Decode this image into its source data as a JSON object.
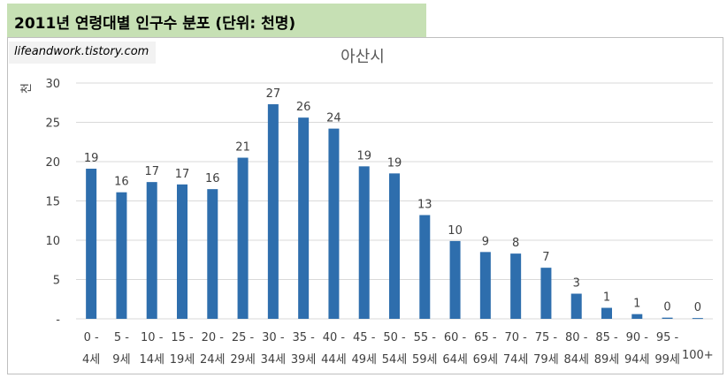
{
  "header": {
    "title": "2011년 연령대별 인구수 분포 (단위: 천명)"
  },
  "watermark": {
    "text": "lifeandwork.tistory.com"
  },
  "colors": {
    "bar": "#2e6ead",
    "header_bg": "#c6e0b4",
    "grid": "#d9d9d9"
  },
  "chart_data": {
    "type": "bar",
    "title": "아산시",
    "ylabel": "천",
    "xlabel": "",
    "ylim": [
      0,
      30
    ],
    "yticks": [
      0,
      5,
      10,
      15,
      20,
      25,
      30
    ],
    "ytick_labels": [
      "-",
      "5",
      "10",
      "15",
      "20",
      "25",
      "30"
    ],
    "grid": true,
    "categories": [
      [
        "0 -",
        "4세"
      ],
      [
        "5 -",
        "9세"
      ],
      [
        "10 -",
        "14세"
      ],
      [
        "15 -",
        "19세"
      ],
      [
        "20 -",
        "24세"
      ],
      [
        "25 -",
        "29세"
      ],
      [
        "30 -",
        "34세"
      ],
      [
        "35 -",
        "39세"
      ],
      [
        "40 -",
        "44세"
      ],
      [
        "45 -",
        "49세"
      ],
      [
        "50 -",
        "54세"
      ],
      [
        "55 -",
        "59세"
      ],
      [
        "60 -",
        "64세"
      ],
      [
        "65 -",
        "69세"
      ],
      [
        "70 -",
        "74세"
      ],
      [
        "75 -",
        "79세"
      ],
      [
        "80 -",
        "84세"
      ],
      [
        "85 -",
        "89세"
      ],
      [
        "90 -",
        "94세"
      ],
      [
        "95 -",
        "99세"
      ],
      [
        "",
        "100+"
      ]
    ],
    "values": [
      19.1,
      16.1,
      17.4,
      17.1,
      16.5,
      20.5,
      27.3,
      25.6,
      24.2,
      19.4,
      18.5,
      13.2,
      9.9,
      8.5,
      8.3,
      6.5,
      3.2,
      1.4,
      0.6,
      0.15,
      0.1
    ],
    "data_labels": [
      "19",
      "16",
      "17",
      "17",
      "16",
      "21",
      "27",
      "26",
      "24",
      "19",
      "19",
      "13",
      "10",
      "9",
      "8",
      "7",
      "3",
      "1",
      "1",
      "0",
      "0"
    ]
  }
}
